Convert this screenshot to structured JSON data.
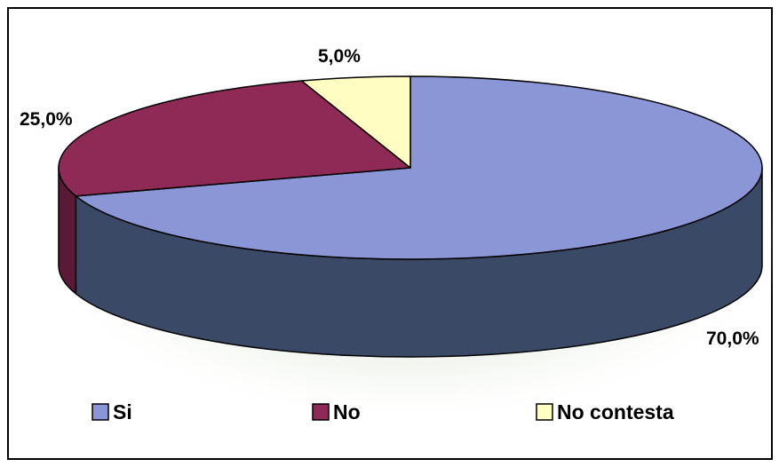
{
  "chart_data": {
    "type": "pie",
    "categories": [
      "Si",
      "No",
      "No contesta"
    ],
    "values": [
      70.0,
      25.0,
      5.0
    ],
    "labels": [
      "70,0%",
      "25,0%",
      "5,0%"
    ],
    "colors": [
      "#8b96d6",
      "#8e2a55",
      "#fffdc2"
    ],
    "side_colors": [
      "#3a4a66",
      "#5a1a36",
      "#b8b27a"
    ],
    "legend_position": "bottom",
    "three_d": true
  }
}
